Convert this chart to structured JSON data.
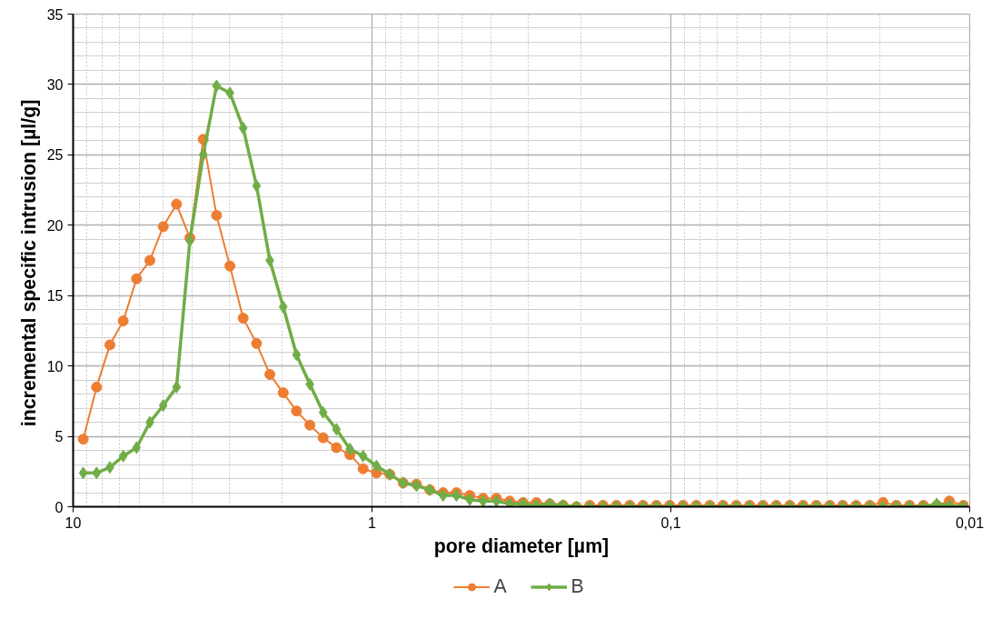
{
  "chart_data": {
    "type": "line",
    "xlabel": "pore diameter [µm]",
    "ylabel": "incremental specific  intrusion [µl/g]",
    "log": "x",
    "xlim": [
      10,
      0.01
    ],
    "xticks": [
      10,
      1,
      {
        "value": 0.1,
        "label": "0,1"
      },
      {
        "value": 0.01,
        "label": "0,01"
      }
    ],
    "ylim": [
      0,
      35
    ],
    "yticks": [
      0,
      5,
      10,
      15,
      20,
      25,
      30,
      35
    ],
    "grid": true,
    "legend": "bottom",
    "x": [
      9.25,
      8.347,
      7.533,
      6.797,
      6.134,
      5.536,
      4.995,
      4.508,
      4.068,
      3.671,
      3.313,
      2.989,
      2.698,
      2.434,
      2.197,
      1.982,
      1.789,
      1.614,
      1.457,
      1.315,
      1.186,
      1.071,
      0.966,
      0.8717,
      0.7866,
      0.7099,
      0.6406,
      0.5781,
      0.5217,
      0.4708,
      0.4248,
      0.3834,
      0.346,
      0.3122,
      0.2817,
      0.2542,
      0.2294,
      0.207,
      0.1868,
      0.1686,
      0.1521,
      0.1373,
      0.1239,
      0.1118,
      0.1009,
      0.091,
      0.0822,
      0.0741,
      0.0669,
      0.0604,
      0.0545,
      0.0492,
      0.0444,
      0.04,
      0.0361,
      0.0326,
      0.0294,
      0.0266,
      0.024,
      0.0216,
      0.0195,
      0.0176,
      0.0159,
      0.0143,
      0.0129,
      0.0117,
      0.0105
    ],
    "series": [
      {
        "name": "A",
        "color": "#ed7d31",
        "marker": "circle",
        "values": [
          4.8,
          8.5,
          11.5,
          13.2,
          16.2,
          17.5,
          19.9,
          21.5,
          19.1,
          26.1,
          20.7,
          17.1,
          13.4,
          11.6,
          9.4,
          8.1,
          6.8,
          5.8,
          4.9,
          4.2,
          3.7,
          2.7,
          2.4,
          2.3,
          1.7,
          1.6,
          1.2,
          1.0,
          1.0,
          0.8,
          0.6,
          0.6,
          0.4,
          0.3,
          0.3,
          0.2,
          0.1,
          0.0,
          0.1,
          0.1,
          0.1,
          0.1,
          0.1,
          0.1,
          0.1,
          0.1,
          0.1,
          0.1,
          0.1,
          0.1,
          0.1,
          0.1,
          0.1,
          0.1,
          0.1,
          0.1,
          0.1,
          0.1,
          0.1,
          0.1,
          0.3,
          0.1,
          0.1,
          0.1,
          0.1,
          0.4,
          0.1
        ]
      },
      {
        "name": "B",
        "color": "#70ad47",
        "marker": "diamond",
        "values": [
          2.4,
          2.4,
          2.8,
          3.6,
          4.2,
          6.0,
          7.2,
          8.5,
          18.9,
          25.0,
          29.9,
          29.4,
          26.9,
          22.8,
          17.5,
          14.2,
          10.8,
          8.7,
          6.7,
          5.5,
          4.1,
          3.6,
          2.9,
          2.3,
          1.7,
          1.5,
          1.2,
          0.8,
          0.8,
          0.5,
          0.4,
          0.4,
          0.2,
          0.2,
          0.1,
          0.2,
          0.1,
          0.0,
          0.0,
          0.0,
          0.0,
          0.0,
          0.0,
          0.0,
          0.0,
          0.0,
          0.0,
          0.0,
          0.0,
          0.0,
          0.0,
          0.0,
          0.0,
          0.0,
          0.0,
          0.0,
          0.0,
          0.0,
          0.0,
          0.0,
          0.0,
          0.0,
          0.0,
          0.0,
          0.2,
          0.1,
          0.0
        ]
      }
    ]
  }
}
